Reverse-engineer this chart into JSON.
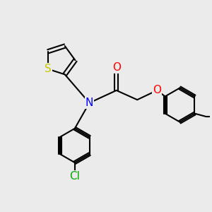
{
  "bg_color": "#ebebeb",
  "atom_colors": {
    "S": "#c8c800",
    "N": "#0000ff",
    "O": "#ff0000",
    "Cl": "#00aa00",
    "C": "#000000"
  },
  "font_size_atom": 11,
  "line_width": 1.5,
  "figsize": [
    3.0,
    3.0
  ],
  "dpi": 100
}
